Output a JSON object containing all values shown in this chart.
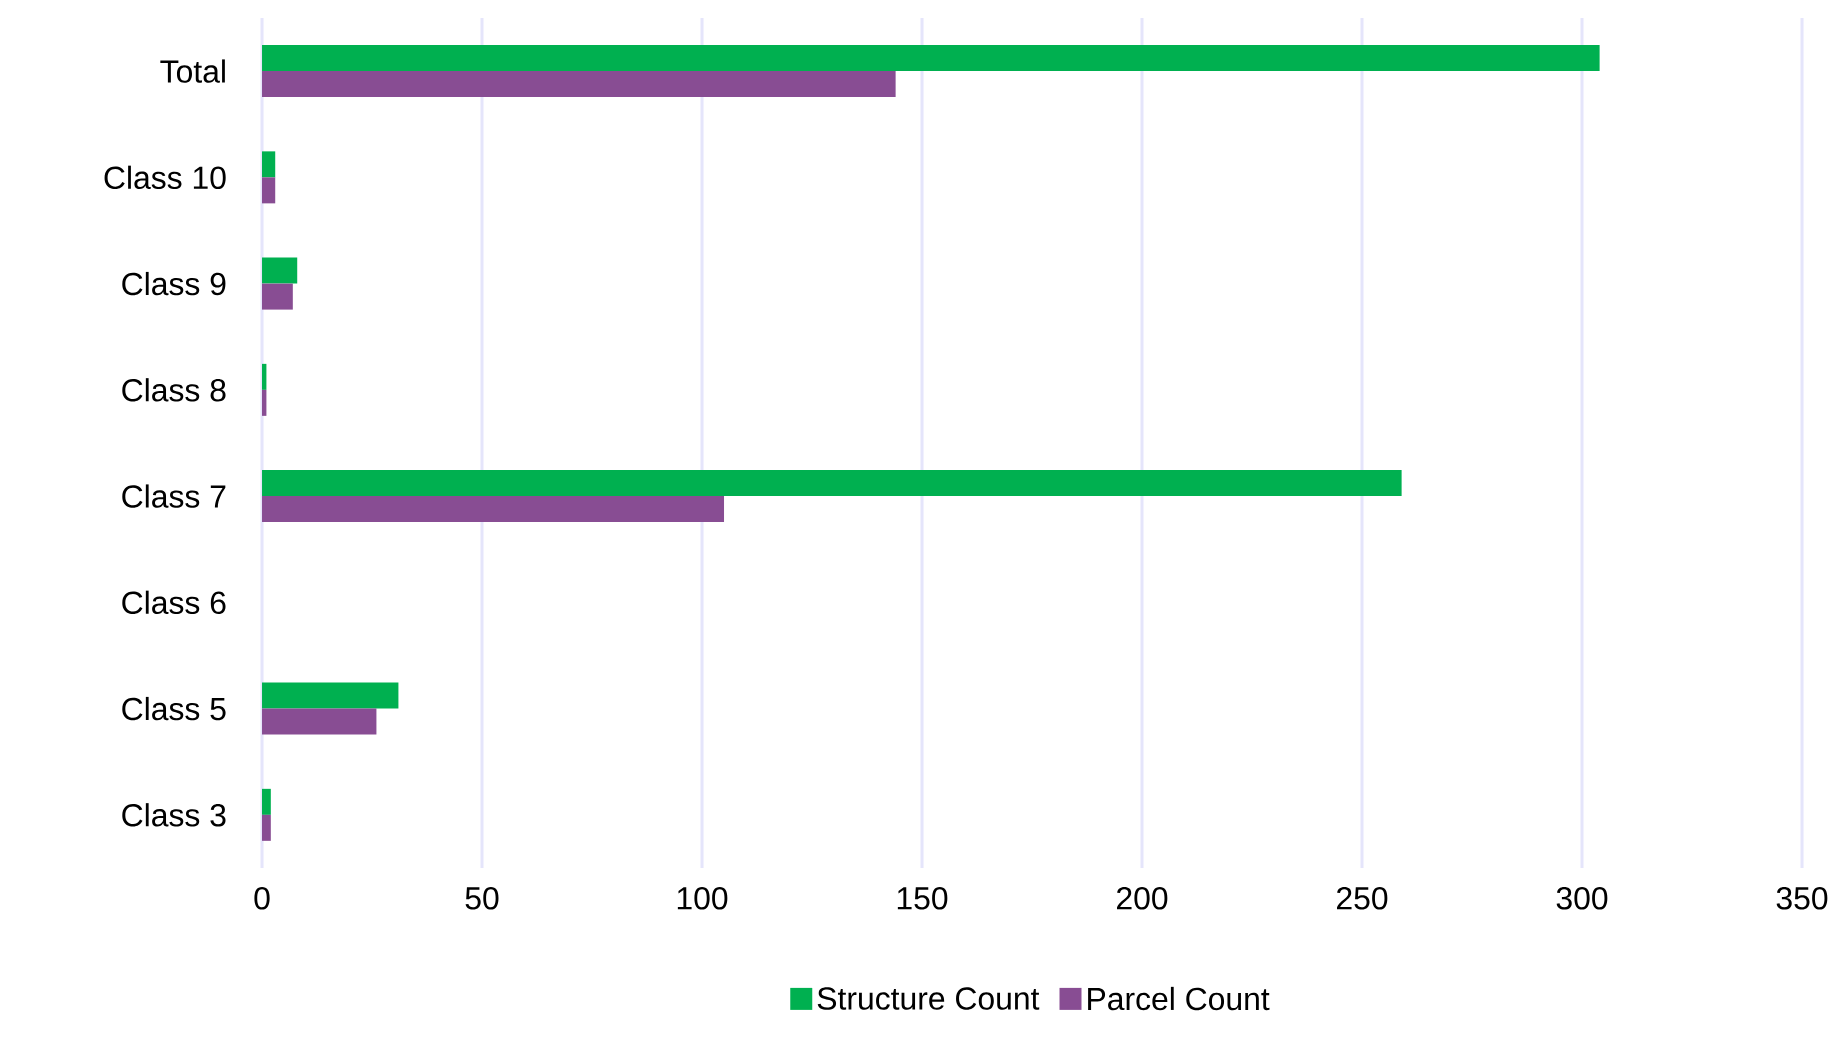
{
  "chart_data": {
    "type": "bar",
    "orientation": "horizontal",
    "categories": [
      "Total",
      "Class 10",
      "Class 9",
      "Class 8",
      "Class 7",
      "Class 6",
      "Class 5",
      "Class 3"
    ],
    "series": [
      {
        "name": "Structure Count",
        "color": "#00b050",
        "values": [
          304,
          3,
          8,
          1,
          259,
          0,
          31,
          2
        ]
      },
      {
        "name": "Parcel Count",
        "color": "#884d93",
        "values": [
          144,
          3,
          7,
          1,
          105,
          0,
          26,
          2
        ]
      }
    ],
    "xlim": [
      0,
      350
    ],
    "xticks": [
      0,
      50,
      100,
      150,
      200,
      250,
      300,
      350
    ],
    "grid": "x",
    "legend": "bottom"
  }
}
